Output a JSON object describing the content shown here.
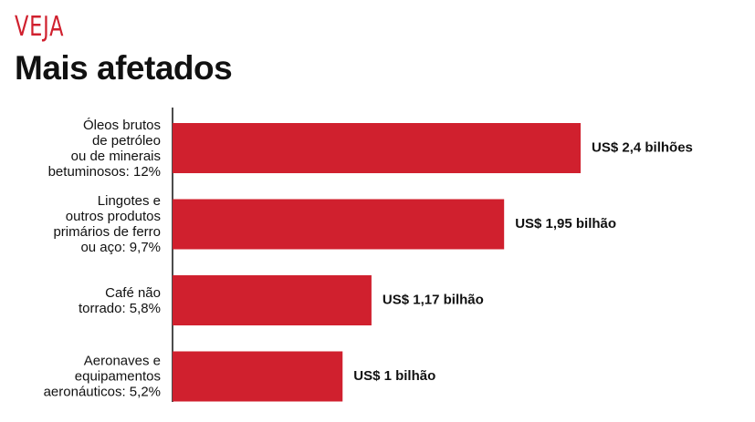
{
  "brand": "VEJA",
  "chart_data": {
    "type": "bar",
    "orientation": "horizontal",
    "title": "Mais afetados",
    "categories": [
      "Óleos brutos\nde petróleo\nou de minerais\nbetuminosos: 12%",
      "Lingotes e\noutros produtos\nprimários de ferro\nou aço: 9,7%",
      "Café não\ntorrado: 5,8%",
      "Aeronaves e\nequipamentos\naeronáuticos: 5,2%"
    ],
    "values": [
      2.4,
      1.95,
      1.17,
      1
    ],
    "value_labels": [
      "US$ 2,4 bilhões",
      "US$ 1,95 bilhão",
      "US$ 1,17 bilhão",
      "US$ 1 bilhão"
    ],
    "color": "#d0202e"
  }
}
